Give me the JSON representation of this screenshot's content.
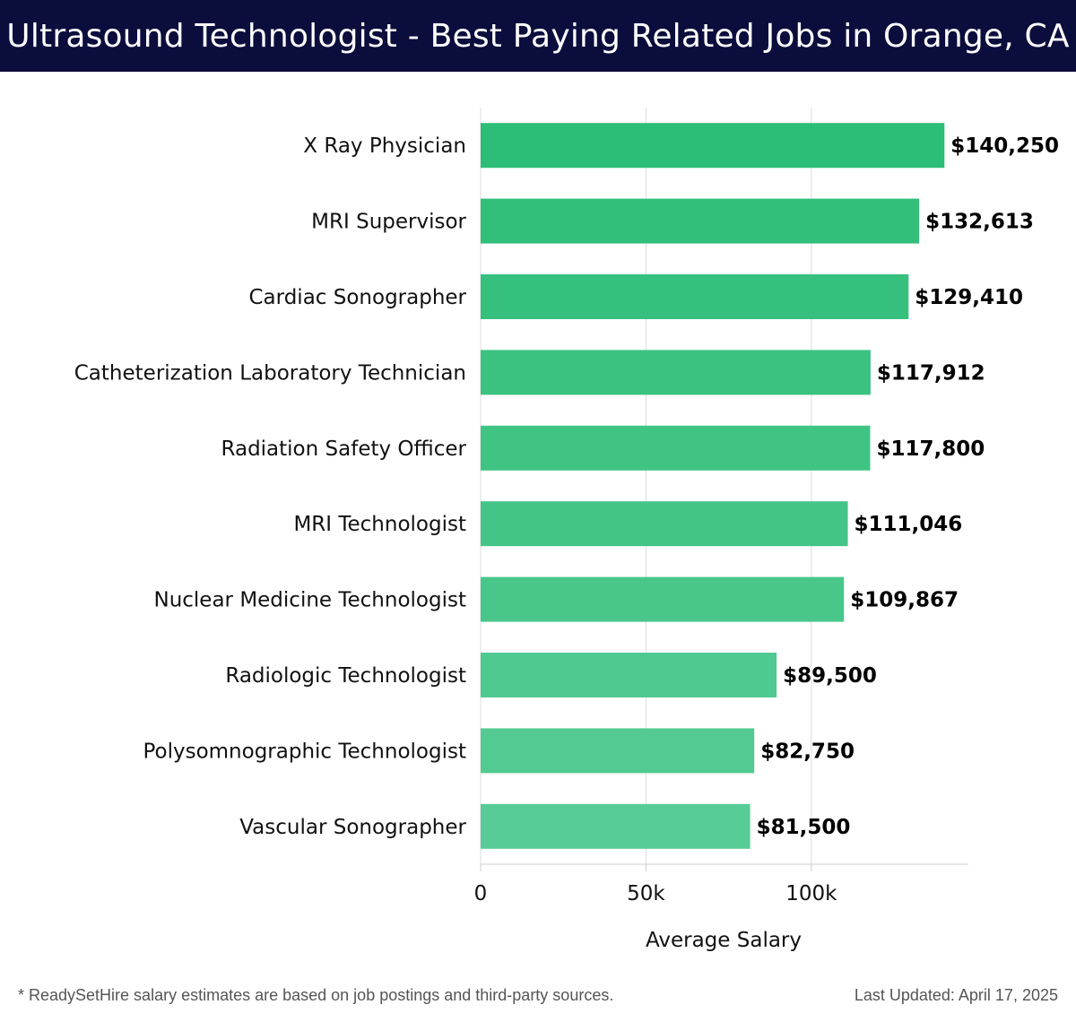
{
  "header": {
    "title": "Ultrasound Technologist - Best Paying Related Jobs in Orange, CA"
  },
  "footer": {
    "note": "* ReadySetHire salary estimates are based on job postings and third-party sources.",
    "updated": "Last Updated: April 17, 2025"
  },
  "colors": {
    "header_bg": "#0b0d3d",
    "bar_dark": "#2cbd76",
    "bar_light": "#58cc96",
    "grid": "#dddddd",
    "axis": "#cccccc"
  },
  "chart_data": {
    "type": "bar",
    "orientation": "horizontal",
    "title": "",
    "xlabel": "Average Salary",
    "ylabel": "",
    "xlim": [
      0,
      147500
    ],
    "grid": true,
    "categories": [
      "X Ray Physician",
      "MRI Supervisor",
      "Cardiac Sonographer",
      "Catheterization Laboratory Technician",
      "Radiation Safety Officer",
      "MRI Technologist",
      "Nuclear Medicine Technologist",
      "Radiologic Technologist",
      "Polysomnographic Technologist",
      "Vascular Sonographer"
    ],
    "values": [
      140250,
      132613,
      129410,
      117912,
      117800,
      111046,
      109867,
      89500,
      82750,
      81500
    ],
    "value_labels": [
      "$140,250",
      "$132,613",
      "$129,410",
      "$117,912",
      "$117,800",
      "$111,046",
      "$109,867",
      "$89,500",
      "$82,750",
      "$81,500"
    ],
    "xticks": [
      {
        "value": 0,
        "label": "0"
      },
      {
        "value": 50000,
        "label": "50k"
      },
      {
        "value": 100000,
        "label": "100k"
      }
    ]
  }
}
